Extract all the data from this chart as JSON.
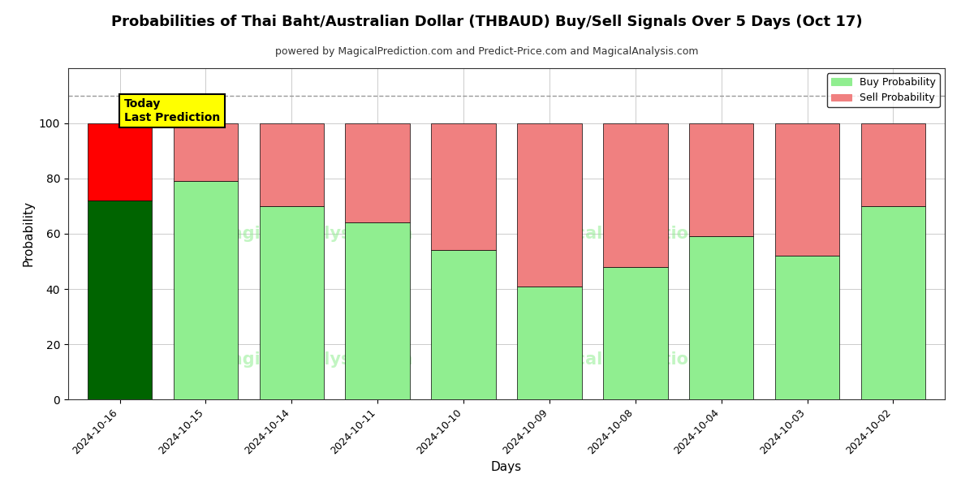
{
  "title": "Probabilities of Thai Baht/Australian Dollar (THBAUD) Buy/Sell Signals Over 5 Days (Oct 17)",
  "subtitle": "powered by MagicalPrediction.com and Predict-Price.com and MagicalAnalysis.com",
  "xlabel": "Days",
  "ylabel": "Probability",
  "categories": [
    "2024-10-16",
    "2024-10-15",
    "2024-10-14",
    "2024-10-11",
    "2024-10-10",
    "2024-10-09",
    "2024-10-08",
    "2024-10-04",
    "2024-10-03",
    "2024-10-02"
  ],
  "buy_values": [
    72,
    79,
    70,
    64,
    54,
    41,
    48,
    59,
    52,
    70
  ],
  "sell_values": [
    28,
    21,
    30,
    36,
    46,
    59,
    52,
    41,
    48,
    30
  ],
  "first_bar_buy_color": "#006400",
  "first_bar_sell_color": "#ff0000",
  "other_buy_color": "#90ee90",
  "other_sell_color": "#f08080",
  "ylim": [
    0,
    120
  ],
  "yticks": [
    0,
    20,
    40,
    60,
    80,
    100
  ],
  "dashed_line_y": 110,
  "dashed_line_color": "#999999",
  "legend_buy_label": "Buy Probability",
  "legend_sell_label": "Sell Probability",
  "today_box_text": "Today\nLast Prediction",
  "today_box_facecolor": "#ffff00",
  "today_box_edgecolor": "#000000",
  "watermark_color_hex": "#90ee90",
  "watermark_alpha": 0.55,
  "background_color": "#ffffff",
  "grid_color": "#cccccc",
  "bar_edge_color": "#000000",
  "bar_width": 0.75
}
